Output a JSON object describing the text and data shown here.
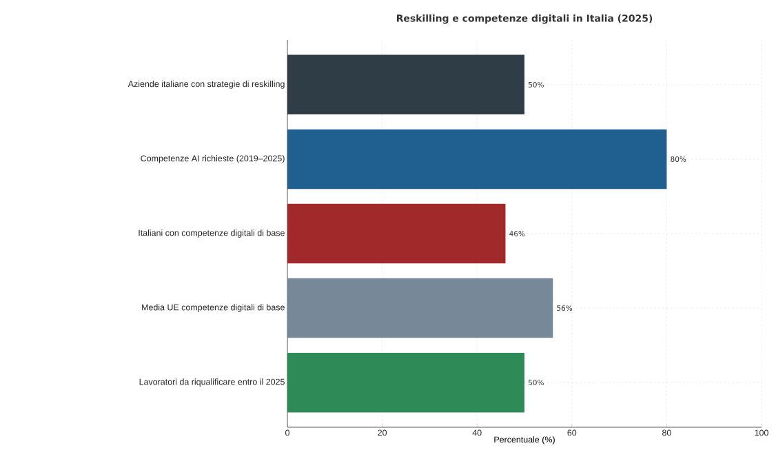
{
  "chart_data": {
    "type": "bar",
    "orientation": "horizontal",
    "title": "Reskilling e competenze digitali in Italia (2025)",
    "categories": [
      "Aziende italiane con strategie di reskilling",
      "Competenze AI richieste (2019–2025)",
      "Italiani con competenze digitali di base",
      "Media UE competenze digitali di base",
      "Lavoratori da riqualificare entro il 2025"
    ],
    "values": [
      50,
      80,
      46,
      56,
      50
    ],
    "colors": [
      "#2f3d46",
      "#1f6091",
      "#a2292a",
      "#778899",
      "#2e8b57"
    ],
    "value_labels": [
      "50%",
      "80%",
      "46%",
      "56%",
      "50%"
    ],
    "xlabel": "Percentuale (%)",
    "xlim": [
      0,
      100
    ],
    "xticks": [
      0,
      20,
      40,
      60,
      80,
      100
    ],
    "grid": true
  }
}
